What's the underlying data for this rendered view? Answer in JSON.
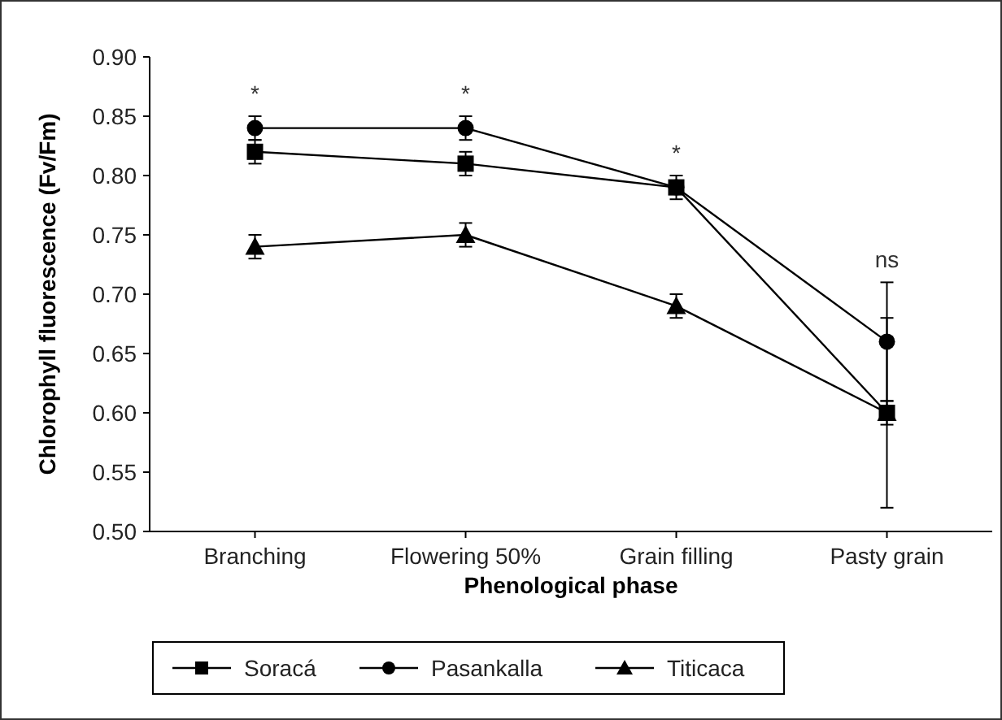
{
  "chart_data": {
    "type": "line",
    "xlabel": "Phenological phase",
    "ylabel": "Chlorophyll fluorescence (Fv/Fm)",
    "categories": [
      "Branching",
      "Flowering 50%",
      "Grain filling",
      "Pasty grain"
    ],
    "ylim": [
      0.5,
      0.9
    ],
    "yticks": [
      {
        "value": 0.5,
        "label": "0.50"
      },
      {
        "value": 0.55,
        "label": "0.55"
      },
      {
        "value": 0.6,
        "label": "0.60"
      },
      {
        "value": 0.65,
        "label": "0.65"
      },
      {
        "value": 0.7,
        "label": "0.70"
      },
      {
        "value": 0.75,
        "label": "0.75"
      },
      {
        "value": 0.8,
        "label": "0.80"
      },
      {
        "value": 0.85,
        "label": "0.85"
      },
      {
        "value": 0.9,
        "label": "0.90"
      }
    ],
    "series": [
      {
        "name": "Soracá",
        "color": "#000000",
        "marker": "square",
        "values": [
          0.82,
          0.81,
          0.79,
          0.6
        ],
        "errors": [
          0.01,
          0.01,
          0.005,
          0.01
        ]
      },
      {
        "name": "Pasankalla",
        "color": "#000000",
        "marker": "circle",
        "values": [
          0.84,
          0.84,
          0.79,
          0.66
        ],
        "errors": [
          0.01,
          0.01,
          0.01,
          0.05
        ]
      },
      {
        "name": "Titicaca",
        "color": "#000000",
        "marker": "triangle",
        "values": [
          0.74,
          0.75,
          0.69,
          0.6
        ],
        "errors": [
          0.01,
          0.01,
          0.01,
          0.08
        ]
      }
    ],
    "annotations": [
      "*",
      "*",
      "*",
      "ns"
    ],
    "legend": "bottom",
    "grid": false,
    "line_style": "solid"
  }
}
